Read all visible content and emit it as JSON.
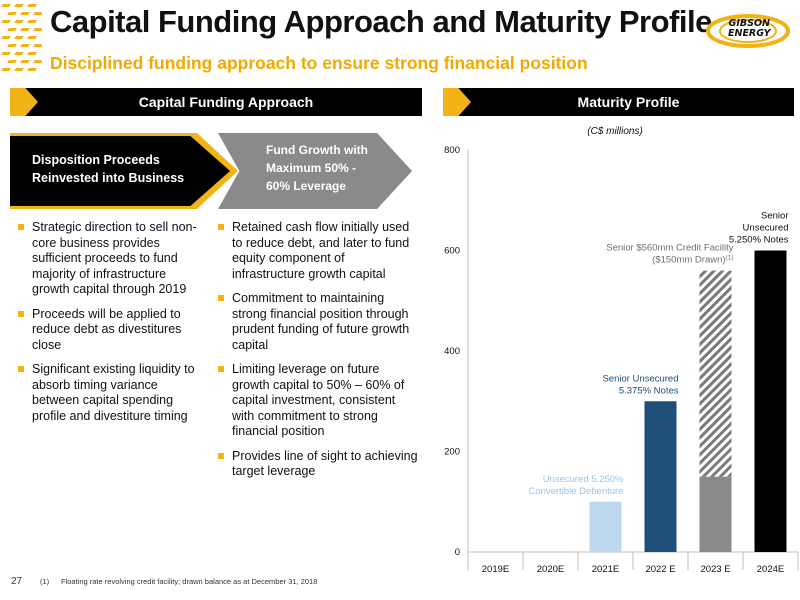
{
  "header": {
    "title": "Capital Funding Approach and Maturity Profile",
    "subtitle": "Disciplined funding approach to ensure strong financial position",
    "logo_line1": "GIBSON",
    "logo_line2": "ENERGY"
  },
  "colors": {
    "accent": "#f2b316",
    "black": "#000000",
    "grey_bar": "#8a8a8a",
    "navy_bar": "#1f4e79",
    "light_blue_bar": "#bdd7ee"
  },
  "left_section": {
    "header": "Capital Funding Approach",
    "chevron_1": [
      "Disposition Proceeds",
      "Reinvested into Business"
    ],
    "chevron_2": [
      "Fund Growth with",
      "Maximum 50% -",
      "60% Leverage"
    ],
    "bullets_left": [
      "Strategic direction to sell non-core business provides sufficient proceeds to fund majority of infrastructure growth capital through 2019",
      "Proceeds will be applied to reduce debt as divestitures close",
      "Significant existing liquidity to absorb timing variance between capital spending profile and divestiture timing"
    ],
    "bullets_right": [
      "Retained cash flow initially used to reduce debt, and later to fund equity component of infrastructure growth capital",
      "Commitment to maintaining strong financial position through prudent funding of future growth capital",
      "Limiting leverage on future growth capital to 50% – 60% of capital investment, consistent with commitment to strong financial position",
      "Provides line of sight to achieving target leverage"
    ]
  },
  "right_section": {
    "header": "Maturity Profile"
  },
  "chart_data": {
    "type": "bar",
    "units_label": "(C$ millions)",
    "categories": [
      "2019E",
      "2020E",
      "2021E",
      "2022 E",
      "2023 E",
      "2024E"
    ],
    "values": [
      0,
      0,
      100,
      300,
      560,
      600
    ],
    "ylim": [
      0,
      800
    ],
    "yticks": [
      0,
      200,
      400,
      600,
      800
    ],
    "bars": [
      {
        "category": "2021E",
        "value": 100,
        "color": "#bdd7ee",
        "label": [
          "Unsecured 5.250%",
          "Convertible Debenture"
        ],
        "label_color": "#9dc3e6"
      },
      {
        "category": "2022 E",
        "value": 300,
        "color": "#1f4e79",
        "label": [
          "Senior Unsecured",
          "5.375% Notes"
        ],
        "label_color": "#1f4e79"
      },
      {
        "category": "2023 E",
        "segments": [
          {
            "value": 150,
            "color": "#8a8a8a",
            "pattern": "solid",
            "label": "$150mm Drawn"
          },
          {
            "value": 410,
            "color": "#8a8a8a",
            "pattern": "hatched",
            "label": "Senior $560mm Credit Facility"
          }
        ],
        "label": [
          "Senior $560mm Credit Facility",
          "($150mm Drawn)"
        ],
        "label_sup": "(1)",
        "label_color": "#6e6e6e"
      },
      {
        "category": "2024E",
        "value": 600,
        "color": "#000000",
        "label": [
          "Senior",
          "Unsecured",
          "5.250% Notes"
        ],
        "label_color": "#111111"
      }
    ]
  },
  "footer": {
    "page_number": "27",
    "ref": "(1)",
    "note": "Floating rate revolving credit facility; drawn balance as at December 31, 2018"
  }
}
